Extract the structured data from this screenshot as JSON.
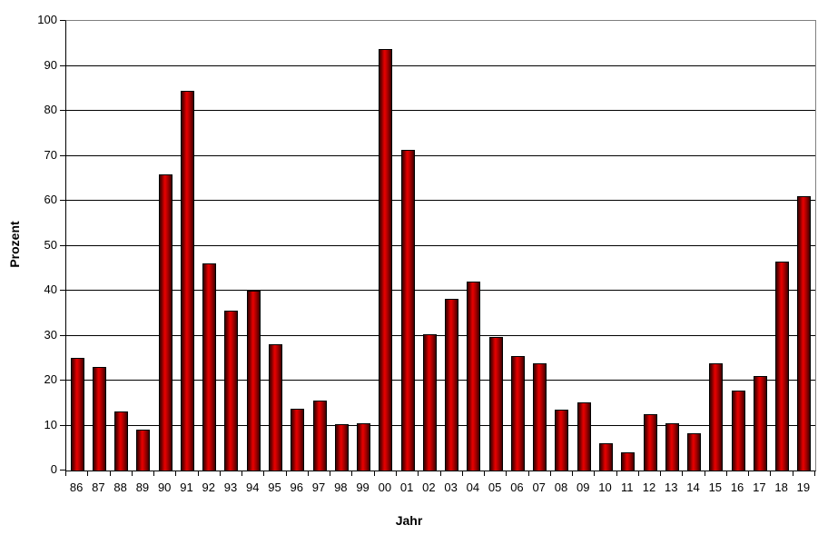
{
  "chart_data": {
    "type": "bar",
    "title": "",
    "xlabel": "Jahr",
    "ylabel": "Prozent",
    "categories": [
      "86",
      "87",
      "88",
      "89",
      "90",
      "91",
      "92",
      "93",
      "94",
      "95",
      "96",
      "97",
      "98",
      "99",
      "00",
      "01",
      "02",
      "03",
      "04",
      "05",
      "06",
      "07",
      "08",
      "09",
      "10",
      "11",
      "12",
      "13",
      "14",
      "15",
      "16",
      "17",
      "18",
      "19"
    ],
    "values": [
      24.9,
      22.9,
      13.0,
      8.9,
      65.7,
      84.3,
      45.8,
      35.3,
      39.9,
      27.8,
      13.5,
      15.3,
      10.2,
      10.3,
      93.6,
      71.1,
      30.2,
      38.0,
      41.8,
      29.5,
      25.2,
      23.6,
      13.4,
      15.0,
      5.9,
      3.9,
      12.3,
      10.4,
      8.1,
      23.7,
      17.6,
      20.8,
      46.3,
      60.8
    ],
    "ylim": [
      0,
      100
    ],
    "ytick_step": 10,
    "grid": true,
    "legend": "none",
    "colors": {
      "bar_bright": "#e00000",
      "bar_mid": "#aa0000",
      "bar_dark": "#6b0000",
      "bar_edge_dark": "#3d0000",
      "bar_border": "#000000",
      "gridline": "#000000",
      "axis": "#000000",
      "plot_border": "#808080",
      "background": "#ffffff",
      "text": "#000000"
    }
  }
}
